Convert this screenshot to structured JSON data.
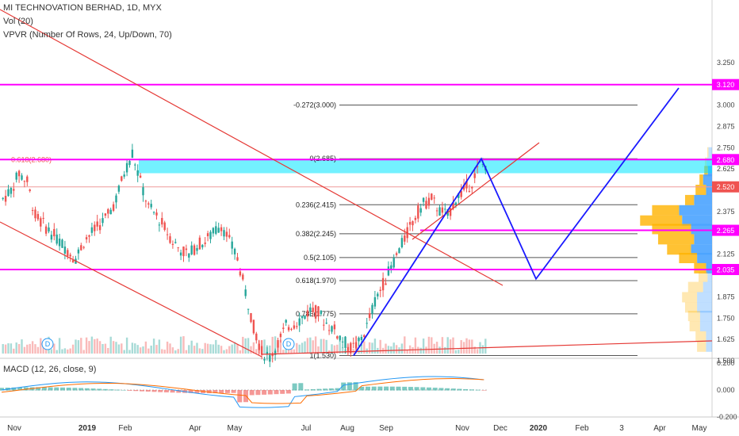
{
  "header": {
    "title": "MI TECHNOVATION BERHAD, 1D, MYX",
    "vol": "Vol (20)",
    "vpvr": "VPVR (Number Of Rows, 24, Up/Down, 70)"
  },
  "macd_label": "MACD (12, 26, close, 9)",
  "colors": {
    "up": "#26a69a",
    "down": "#ef5350",
    "magenta": "#ff00ff",
    "fib_band": "#00e5ff",
    "trend": "#e53935",
    "projection": "#1a1aff",
    "vp_up": "#4aa3ff",
    "vp_down": "#ffb300"
  },
  "chart_data": [
    {
      "type": "candlestick",
      "title": "MI TECHNOVATION BERHAD, 1D, MYX",
      "x_ticks": [
        "Nov",
        "2019",
        "Feb",
        "Apr",
        "May",
        "Jul",
        "Aug",
        "Sep",
        "Nov",
        "Dec",
        "2020",
        "Feb",
        "3",
        "Apr",
        "May"
      ],
      "y_ticks": [
        3.25,
        3.0,
        2.875,
        2.75,
        2.625,
        2.375,
        2.25,
        2.125,
        1.875,
        1.75,
        1.625,
        1.5
      ],
      "ylim": [
        1.45,
        3.3
      ],
      "price_labels": [
        {
          "value": 3.12,
          "text": "3.120",
          "color": "#ff00ff"
        },
        {
          "value": 2.68,
          "text": "2.680",
          "color": "#ff00ff"
        },
        {
          "value": 2.52,
          "text": "2.520",
          "color": "#ef5350"
        },
        {
          "value": 2.265,
          "text": "2.265",
          "color": "#ff00ff"
        },
        {
          "value": 2.035,
          "text": "2.035",
          "color": "#ff00ff"
        }
      ],
      "horizontal_lines": [
        3.12,
        2.68,
        2.265,
        2.035
      ],
      "fibonacci_levels": [
        {
          "label": "-0.272(3.000)",
          "value": 3.0
        },
        {
          "label": "0(2.685)",
          "value": 2.685
        },
        {
          "label": "0.236(2.415)",
          "value": 2.415
        },
        {
          "label": "0.382(2.245)",
          "value": 2.245
        },
        {
          "label": "0.5(2.105)",
          "value": 2.105
        },
        {
          "label": "0.618(1.970)",
          "value": 1.97
        },
        {
          "label": "0.786(1.775)",
          "value": 1.775
        },
        {
          "label": "1(1.530)",
          "value": 1.53
        }
      ],
      "left_fib_label": {
        "label": "0.618(2.680)",
        "value": 2.68
      },
      "projection_path": [
        {
          "x": "Aug",
          "y": 1.53
        },
        {
          "x": "Nov",
          "y": 2.685
        },
        {
          "x": "2020",
          "y": 1.98
        },
        {
          "x": "May",
          "y": 3.1
        }
      ],
      "dividend_markers": [
        "D",
        "D"
      ],
      "close_series": [
        2.45,
        2.5,
        2.6,
        2.55,
        2.35,
        2.3,
        2.25,
        2.2,
        2.15,
        2.1,
        2.2,
        2.25,
        2.3,
        2.35,
        2.45,
        2.6,
        2.72,
        2.55,
        2.4,
        2.35,
        2.28,
        2.2,
        2.15,
        2.12,
        2.18,
        2.2,
        2.25,
        2.3,
        2.2,
        2.1,
        1.9,
        1.7,
        1.55,
        1.52,
        1.6,
        1.7,
        1.72,
        1.75,
        1.8,
        1.78,
        1.72,
        1.68,
        1.62,
        1.57,
        1.6,
        1.7,
        1.85,
        1.95,
        2.05,
        2.15,
        2.25,
        2.35,
        2.42,
        2.45,
        2.38,
        2.35,
        2.45,
        2.5,
        2.55,
        2.65
      ]
    },
    {
      "type": "line",
      "title": "MACD (12, 26, close, 9)",
      "y_ticks": [
        0.2,
        0.0,
        -0.2
      ],
      "ylim": [
        -0.2,
        0.2
      ]
    }
  ]
}
